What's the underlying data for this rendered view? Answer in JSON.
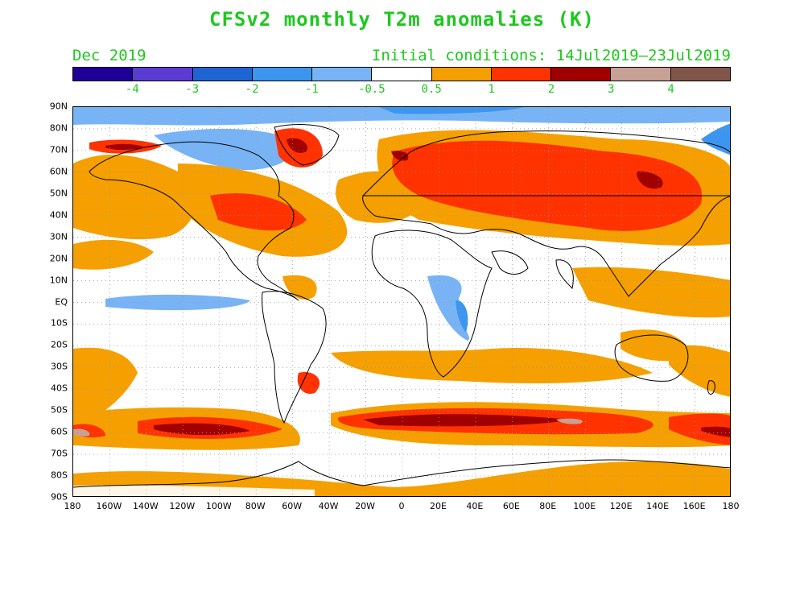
{
  "title": "CFSv2 monthly T2m anomalies (K)",
  "valid_month": "Dec 2019",
  "initial_conditions": "Initial conditions: 14Jul2019—23Jul2019",
  "colorbar": {
    "colors": [
      "#1e0096",
      "#5a3cd2",
      "#1e64d2",
      "#3c96f0",
      "#78b4f5",
      "#ffffff",
      "#f5a000",
      "#ff3200",
      "#a00000",
      "#c8a096",
      "#82554b"
    ],
    "labels": [
      "-4",
      "-3",
      "-2",
      "-1",
      "-0.5",
      "0.5",
      "1",
      "2",
      "3",
      "4"
    ]
  },
  "axes": {
    "lat_labels": [
      "90N",
      "80N",
      "70N",
      "60N",
      "50N",
      "40N",
      "30N",
      "20N",
      "10N",
      "EQ",
      "10S",
      "20S",
      "30S",
      "40S",
      "50S",
      "60S",
      "70S",
      "80S",
      "90S"
    ],
    "lon_labels": [
      "180",
      "160W",
      "140W",
      "120W",
      "100W",
      "80W",
      "60W",
      "40W",
      "20W",
      "0",
      "20E",
      "40E",
      "60E",
      "80E",
      "100E",
      "120E",
      "140E",
      "160E",
      "180"
    ]
  },
  "map": {
    "projection": "equirectangular",
    "lon_range": [
      -180,
      180
    ],
    "lat_range": [
      -90,
      90
    ],
    "grid": "dotted every 20 lon / 10 lat"
  }
}
